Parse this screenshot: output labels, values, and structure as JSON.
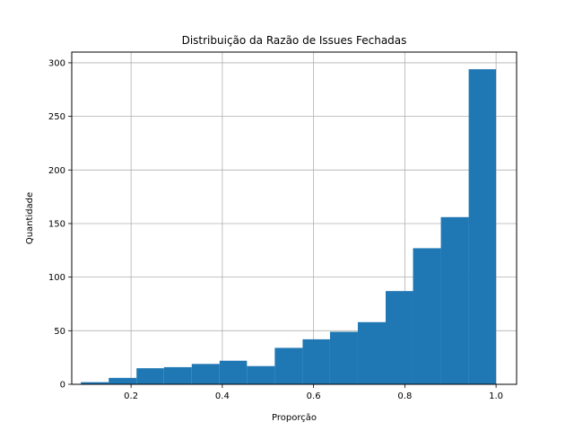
{
  "chart_data": {
    "type": "histogram",
    "title": "Distribuição da Razão de Issues Fechadas",
    "xlabel": "Proporção",
    "ylabel": "Quantidade",
    "xlim": [
      0.07,
      1.045
    ],
    "ylim": [
      0,
      310
    ],
    "grid": true,
    "bar_color": "#1f77b4",
    "grid_color": "#b0b0b0",
    "bins": [
      {
        "x0": 0.09,
        "x1": 0.151,
        "value": 2
      },
      {
        "x0": 0.151,
        "x1": 0.212,
        "value": 6
      },
      {
        "x0": 0.212,
        "x1": 0.272,
        "value": 15
      },
      {
        "x0": 0.272,
        "x1": 0.333,
        "value": 16
      },
      {
        "x0": 0.333,
        "x1": 0.394,
        "value": 19
      },
      {
        "x0": 0.394,
        "x1": 0.454,
        "value": 22
      },
      {
        "x0": 0.454,
        "x1": 0.515,
        "value": 17
      },
      {
        "x0": 0.515,
        "x1": 0.576,
        "value": 34
      },
      {
        "x0": 0.576,
        "x1": 0.636,
        "value": 42
      },
      {
        "x0": 0.636,
        "x1": 0.697,
        "value": 49
      },
      {
        "x0": 0.697,
        "x1": 0.758,
        "value": 58
      },
      {
        "x0": 0.758,
        "x1": 0.818,
        "value": 87
      },
      {
        "x0": 0.818,
        "x1": 0.879,
        "value": 127
      },
      {
        "x0": 0.879,
        "x1": 0.94,
        "value": 156
      },
      {
        "x0": 0.94,
        "x1": 1.0,
        "value": 294
      }
    ],
    "xticks": [
      {
        "value": 0.2,
        "label": "0.2"
      },
      {
        "value": 0.4,
        "label": "0.4"
      },
      {
        "value": 0.6,
        "label": "0.6"
      },
      {
        "value": 0.8,
        "label": "0.8"
      },
      {
        "value": 1.0,
        "label": "1.0"
      }
    ],
    "yticks": [
      {
        "value": 0,
        "label": "0"
      },
      {
        "value": 50,
        "label": "50"
      },
      {
        "value": 100,
        "label": "100"
      },
      {
        "value": 150,
        "label": "150"
      },
      {
        "value": 200,
        "label": "200"
      },
      {
        "value": 250,
        "label": "250"
      },
      {
        "value": 300,
        "label": "300"
      }
    ]
  }
}
